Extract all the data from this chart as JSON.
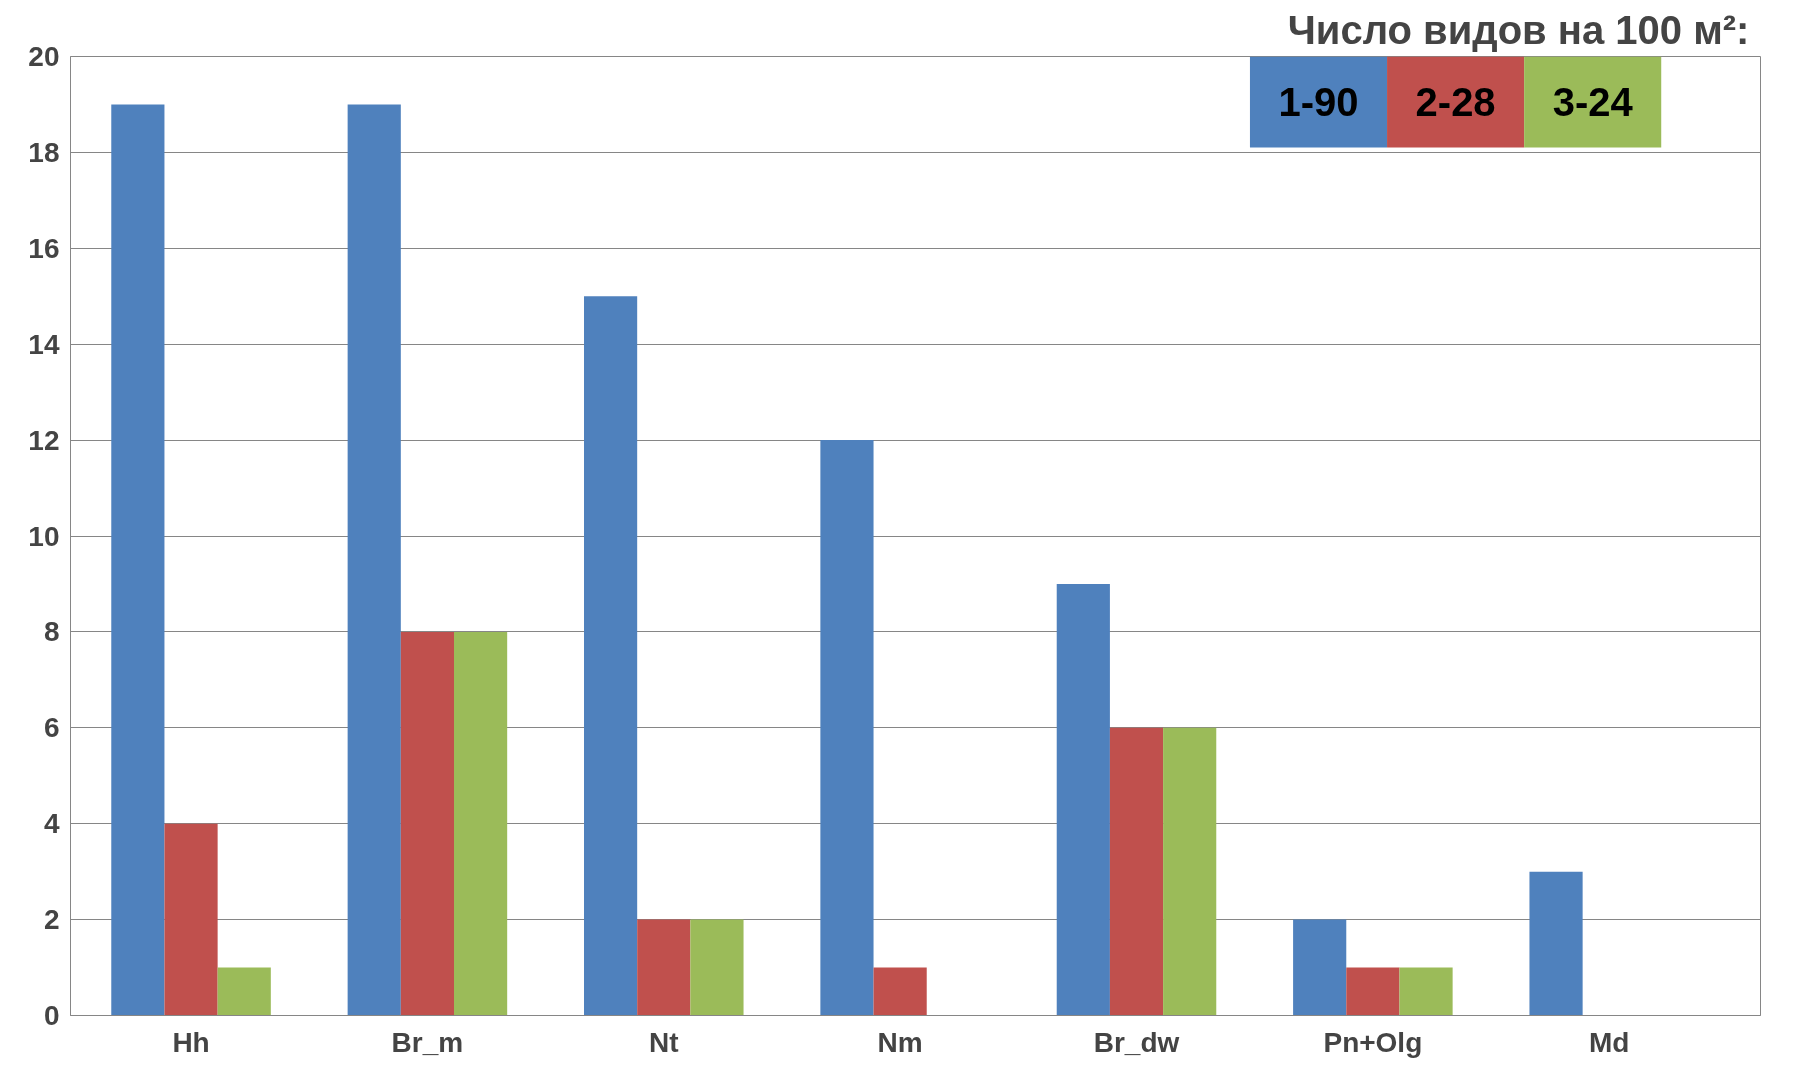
{
  "chart_data": {
    "type": "bar",
    "legend_title": "Число видов на  100 м²:",
    "categories": [
      "Hh",
      "Br_m",
      "Nt",
      "Nm",
      "Br_dw",
      "Pn+Olg",
      "Md"
    ],
    "series": [
      {
        "name": "1-90",
        "color": "#4f81bd",
        "values": [
          19,
          19,
          15,
          12,
          9,
          2,
          3
        ]
      },
      {
        "name": "2-28",
        "color": "#c0504d",
        "values": [
          4,
          8,
          2,
          1,
          6,
          1,
          null
        ]
      },
      {
        "name": "3-24",
        "color": "#9bbb59",
        "values": [
          1,
          8,
          2,
          null,
          6,
          1,
          null
        ]
      }
    ],
    "ylim": [
      0,
      20
    ],
    "yticks": [
      0,
      2,
      4,
      6,
      8,
      10,
      12,
      14,
      16,
      18,
      20
    ],
    "grid": "y",
    "legend": "top right"
  }
}
